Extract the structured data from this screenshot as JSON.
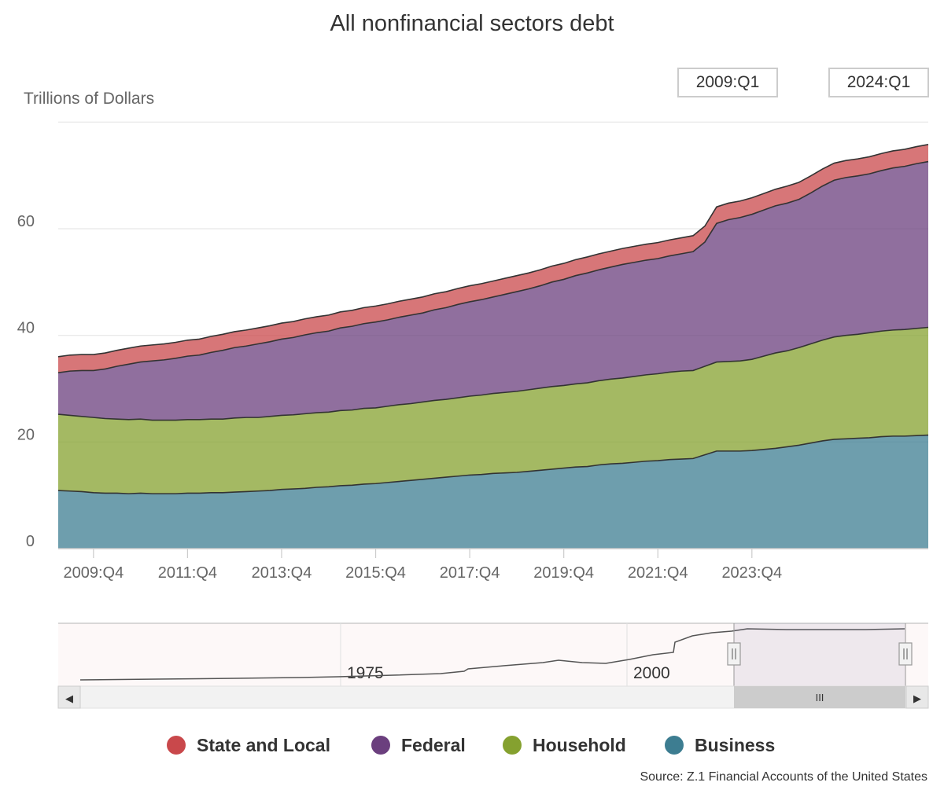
{
  "title": "All nonfinancial sectors debt",
  "y_axis_label": "Trillions of Dollars",
  "range_selector": {
    "from": "2009:Q1",
    "to": "2024:Q1"
  },
  "source": "Source: Z.1 Financial Accounts of the United States",
  "navigator": {
    "labels": [
      "1975",
      "2000"
    ]
  },
  "legend": [
    {
      "name": "State and Local",
      "color": "#c9484b"
    },
    {
      "name": "Federal",
      "color": "#6b3f7e"
    },
    {
      "name": "Household",
      "color": "#85a12f"
    },
    {
      "name": "Business",
      "color": "#3d7d91"
    }
  ],
  "scrollbar": {
    "left_arrow": "◀",
    "right_arrow": "▶",
    "grip": "III"
  },
  "chart_data": {
    "type": "area",
    "stacked": true,
    "title": "All nonfinancial sectors debt",
    "ylabel": "Trillions of Dollars",
    "ylim": [
      0,
      80
    ],
    "yticks": [
      0,
      20,
      40,
      60
    ],
    "x_start": "2009:Q1",
    "x_end": "2024:Q1",
    "xtick_labels": [
      "2009:Q4",
      "2011:Q4",
      "2013:Q4",
      "2015:Q4",
      "2017:Q4",
      "2019:Q4",
      "2021:Q4",
      "2023:Q4"
    ],
    "series": [
      {
        "name": "Business",
        "color": "#3d7d91",
        "values": [
          10.9,
          10.8,
          10.7,
          10.5,
          10.4,
          10.4,
          10.3,
          10.4,
          10.3,
          10.3,
          10.3,
          10.4,
          10.4,
          10.5,
          10.5,
          10.6,
          10.7,
          10.8,
          10.9,
          11.1,
          11.2,
          11.3,
          11.5,
          11.6,
          11.8,
          11.9,
          12.1,
          12.2,
          12.4,
          12.6,
          12.8,
          13.0,
          13.2,
          13.4,
          13.6,
          13.8,
          13.9,
          14.1,
          14.2,
          14.3,
          14.5,
          14.7,
          14.9,
          15.1,
          15.3,
          15.4,
          15.7,
          15.9,
          16.0,
          16.2,
          16.4,
          16.5,
          16.7,
          16.8,
          16.9,
          17.6,
          18.3,
          18.3,
          18.3,
          18.4,
          18.6,
          18.8,
          19.1,
          19.4,
          19.8,
          20.2,
          20.5,
          20.6,
          20.7,
          20.8,
          21.0,
          21.1,
          21.1,
          21.2,
          21.3
        ]
      },
      {
        "name": "Household",
        "color": "#85a12f",
        "values": [
          14.3,
          14.2,
          14.1,
          14.1,
          14.0,
          13.9,
          13.9,
          13.9,
          13.8,
          13.8,
          13.8,
          13.8,
          13.8,
          13.8,
          13.8,
          13.9,
          13.9,
          13.8,
          13.9,
          13.9,
          13.9,
          14.0,
          14.0,
          14.0,
          14.1,
          14.1,
          14.2,
          14.2,
          14.3,
          14.4,
          14.4,
          14.5,
          14.6,
          14.6,
          14.7,
          14.8,
          14.9,
          15.0,
          15.1,
          15.2,
          15.3,
          15.4,
          15.5,
          15.5,
          15.6,
          15.7,
          15.8,
          15.9,
          16.0,
          16.1,
          16.2,
          16.3,
          16.4,
          16.5,
          16.5,
          16.6,
          16.7,
          16.8,
          16.9,
          17.1,
          17.5,
          17.9,
          18.0,
          18.3,
          18.6,
          18.9,
          19.2,
          19.4,
          19.5,
          19.7,
          19.8,
          19.9,
          20.0,
          20.1,
          20.2
        ]
      },
      {
        "name": "Federal",
        "color": "#6b3f7e",
        "values": [
          7.8,
          8.3,
          8.6,
          8.8,
          9.3,
          9.9,
          10.4,
          10.7,
          11.1,
          11.3,
          11.6,
          11.9,
          12.1,
          12.5,
          12.9,
          13.2,
          13.4,
          13.8,
          14.0,
          14.3,
          14.5,
          14.8,
          15.0,
          15.2,
          15.5,
          15.7,
          15.9,
          16.1,
          16.2,
          16.4,
          16.6,
          16.7,
          17.0,
          17.2,
          17.5,
          17.7,
          17.9,
          18.1,
          18.4,
          18.7,
          18.9,
          19.2,
          19.6,
          19.9,
          20.3,
          20.6,
          20.8,
          21.0,
          21.3,
          21.4,
          21.5,
          21.6,
          21.8,
          22.0,
          22.3,
          23.3,
          26.0,
          26.6,
          26.9,
          27.2,
          27.4,
          27.6,
          27.7,
          27.8,
          28.3,
          28.9,
          29.4,
          29.6,
          29.7,
          29.8,
          30.1,
          30.4,
          30.6,
          30.9,
          31.1
        ]
      },
      {
        "name": "State and Local",
        "color": "#c9484b",
        "values": [
          3.0,
          3.0,
          3.0,
          3.0,
          3.0,
          3.0,
          3.0,
          3.0,
          3.0,
          3.0,
          3.0,
          3.0,
          3.0,
          3.0,
          3.0,
          3.0,
          3.0,
          3.0,
          3.0,
          3.0,
          3.0,
          3.0,
          3.0,
          3.0,
          3.0,
          3.0,
          3.0,
          3.0,
          3.0,
          3.0,
          3.0,
          3.0,
          3.0,
          3.0,
          3.0,
          3.0,
          3.0,
          3.0,
          3.0,
          3.0,
          3.0,
          3.0,
          3.0,
          3.0,
          3.0,
          3.0,
          3.0,
          3.0,
          3.0,
          3.0,
          3.0,
          3.0,
          3.0,
          3.0,
          3.0,
          3.0,
          3.1,
          3.1,
          3.1,
          3.1,
          3.1,
          3.1,
          3.2,
          3.2,
          3.2,
          3.2,
          3.2,
          3.2,
          3.2,
          3.2,
          3.2,
          3.2,
          3.2,
          3.2,
          3.2
        ]
      }
    ]
  }
}
